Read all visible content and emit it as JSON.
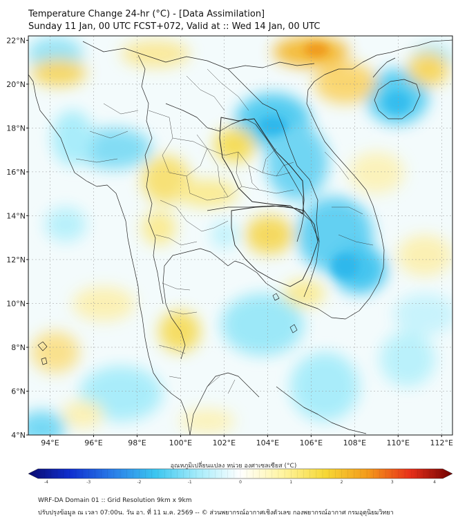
{
  "header": {
    "title": "Temperature Change 24-hr (°C) - [Data Assimilation]",
    "subtitle": "Sunday 11 Jan, 00 UTC FCST+072, Valid at :: Wed 14 Jan, 00 UTC"
  },
  "map": {
    "lat_range": [
      4,
      22.2
    ],
    "lon_range": [
      93,
      112.5
    ],
    "lat_ticks": [
      "22°N",
      "20°N",
      "18°N",
      "16°N",
      "14°N",
      "12°N",
      "10°N",
      "8°N",
      "6°N",
      "4°N"
    ],
    "lon_ticks": [
      "94°E",
      "96°E",
      "98°E",
      "100°E",
      "102°E",
      "104°E",
      "106°E",
      "108°E",
      "110°E",
      "112°E"
    ],
    "grid": true
  },
  "colorbar": {
    "label": "อุณหภูมิเปลี่ยนแปลง หน่วย องศาเซลเซียส (°C)",
    "ticks": [
      "-4",
      "-3",
      "-2",
      "-1",
      "0",
      "1",
      "2",
      "3",
      "4"
    ],
    "range": [
      -4,
      4
    ],
    "colors": [
      "#0a0a6e",
      "#1030d0",
      "#2a7ee8",
      "#3cc6f0",
      "#a6ecfa",
      "#ffffff",
      "#fff4a0",
      "#f6d836",
      "#f49a1a",
      "#e8301a",
      "#6e0000"
    ]
  },
  "footer": {
    "line1": "WRF-DA Domain 01 :: Grid Resolution 9km x 9km",
    "line2": "ปรับปรุงข้อมูล ณ เวลา 07:00น. วัน อา. ที่ 11 ม.ค. 2569 -- © ส่วนพยากรณ์อากาศเชิงตัวเลข กองพยากรณ์อากาศ กรมอุตุนิยมวิทยา"
  }
}
